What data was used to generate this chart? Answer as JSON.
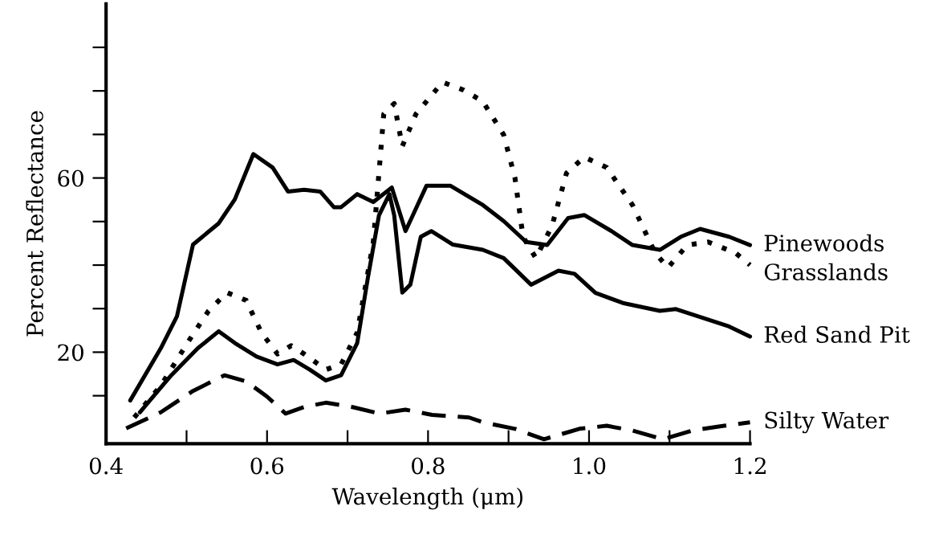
{
  "chart_data": {
    "type": "line",
    "xlabel": "Wavelength (μm)",
    "ylabel": "Percent Reflectance",
    "xlim": [
      0.4,
      1.2
    ],
    "xticks": [
      0.4,
      {
        "value": 0.5,
        "label": null
      },
      0.6,
      {
        "value": 0.7,
        "label": null
      },
      0.8,
      {
        "value": 0.9,
        "label": null
      },
      {
        "value": 1.0,
        "label": "1.0"
      },
      {
        "value": 1.1,
        "label": null
      },
      1.2
    ],
    "ylim": [
      -1,
      100
    ],
    "yticks": [
      {
        "value": 10,
        "label": null
      },
      20,
      {
        "value": 30,
        "label": null
      },
      {
        "value": 40,
        "label": null
      },
      {
        "value": 50,
        "label": null
      },
      60,
      {
        "value": 70,
        "label": null
      },
      {
        "value": 80,
        "label": null
      },
      {
        "value": 90,
        "label": null
      }
    ],
    "grid": false,
    "legend": false,
    "marker": "none",
    "series": [
      {
        "name": "Pinewoods",
        "color": "#000000",
        "line_style": "solid",
        "x": [
          0.43,
          0.468,
          0.488,
          0.508,
          0.54,
          0.56,
          0.583,
          0.607,
          0.626,
          0.646,
          0.666,
          0.683,
          0.692,
          0.712,
          0.732,
          0.755,
          0.772,
          0.798,
          0.828,
          0.868,
          0.894,
          0.922,
          0.948,
          0.974,
          0.994,
          1.028,
          1.054,
          1.088,
          1.114,
          1.138,
          1.174,
          1.2
        ],
        "values": [
          8.9,
          20.9,
          28.2,
          44.7,
          49.6,
          55.1,
          65.5,
          62.4,
          56.9,
          57.3,
          56.9,
          53.3,
          53.3,
          56.3,
          54.5,
          57.8,
          47.8,
          58.2,
          58.2,
          53.8,
          50.1,
          45.3,
          44.6,
          50.8,
          51.5,
          47.8,
          44.6,
          43.5,
          46.5,
          48.3,
          46.5,
          44.6
        ]
      },
      {
        "name": "Grasslands",
        "color": "#000000",
        "line_style": "dotted",
        "x": [
          0.435,
          0.468,
          0.501,
          0.527,
          0.55,
          0.574,
          0.593,
          0.613,
          0.63,
          0.646,
          0.673,
          0.692,
          0.712,
          0.732,
          0.745,
          0.758,
          0.768,
          0.785,
          0.818,
          0.844,
          0.868,
          0.894,
          0.908,
          0.918,
          0.934,
          0.954,
          0.972,
          0.994,
          1.022,
          1.054,
          1.082,
          1.098,
          1.122,
          1.148,
          1.182,
          1.2
        ],
        "values": [
          5.0,
          12.3,
          22.1,
          29.4,
          33.7,
          31.9,
          24.5,
          19.6,
          21.5,
          19.6,
          16.0,
          17.2,
          24.5,
          45.3,
          74.7,
          77.1,
          67.3,
          74.7,
          82.0,
          80.2,
          77.6,
          69.9,
          60.0,
          46.5,
          41.6,
          49.0,
          61.1,
          64.8,
          62.4,
          53.8,
          42.8,
          39.4,
          44.6,
          45.3,
          42.8,
          40.0
        ]
      },
      {
        "name": "Red Sand Pit",
        "color": "#000000",
        "line_style": "solid",
        "x": [
          0.442,
          0.481,
          0.514,
          0.54,
          0.56,
          0.587,
          0.613,
          0.633,
          0.653,
          0.673,
          0.692,
          0.712,
          0.725,
          0.739,
          0.752,
          0.758,
          0.768,
          0.778,
          0.791,
          0.804,
          0.831,
          0.868,
          0.894,
          0.928,
          0.962,
          0.982,
          1.008,
          1.042,
          1.088,
          1.108,
          1.174,
          1.2
        ],
        "values": [
          6.2,
          14.7,
          20.9,
          24.8,
          22.1,
          19.0,
          17.2,
          18.2,
          16.0,
          13.5,
          14.7,
          22.1,
          36.8,
          51.4,
          56.3,
          51.4,
          33.7,
          35.5,
          46.5,
          47.8,
          44.7,
          43.5,
          41.6,
          35.5,
          38.7,
          38.0,
          33.6,
          31.3,
          29.5,
          29.9,
          25.9,
          23.6
        ]
      },
      {
        "name": "Silty Water",
        "color": "#000000",
        "line_style": "dashed",
        "x": [
          0.425,
          0.468,
          0.508,
          0.547,
          0.574,
          0.6,
          0.623,
          0.646,
          0.673,
          0.706,
          0.74,
          0.772,
          0.805,
          0.851,
          0.868,
          0.908,
          0.944,
          0.988,
          1.022,
          1.054,
          1.092,
          1.128,
          1.168,
          1.2
        ],
        "values": [
          2.5,
          6.2,
          11.1,
          14.7,
          13.3,
          9.8,
          5.9,
          7.4,
          8.4,
          7.4,
          5.9,
          6.8,
          5.6,
          5.0,
          3.9,
          2.4,
          0,
          2.4,
          3.1,
          2.0,
          0,
          2.0,
          3.1,
          3.9
        ]
      }
    ]
  }
}
